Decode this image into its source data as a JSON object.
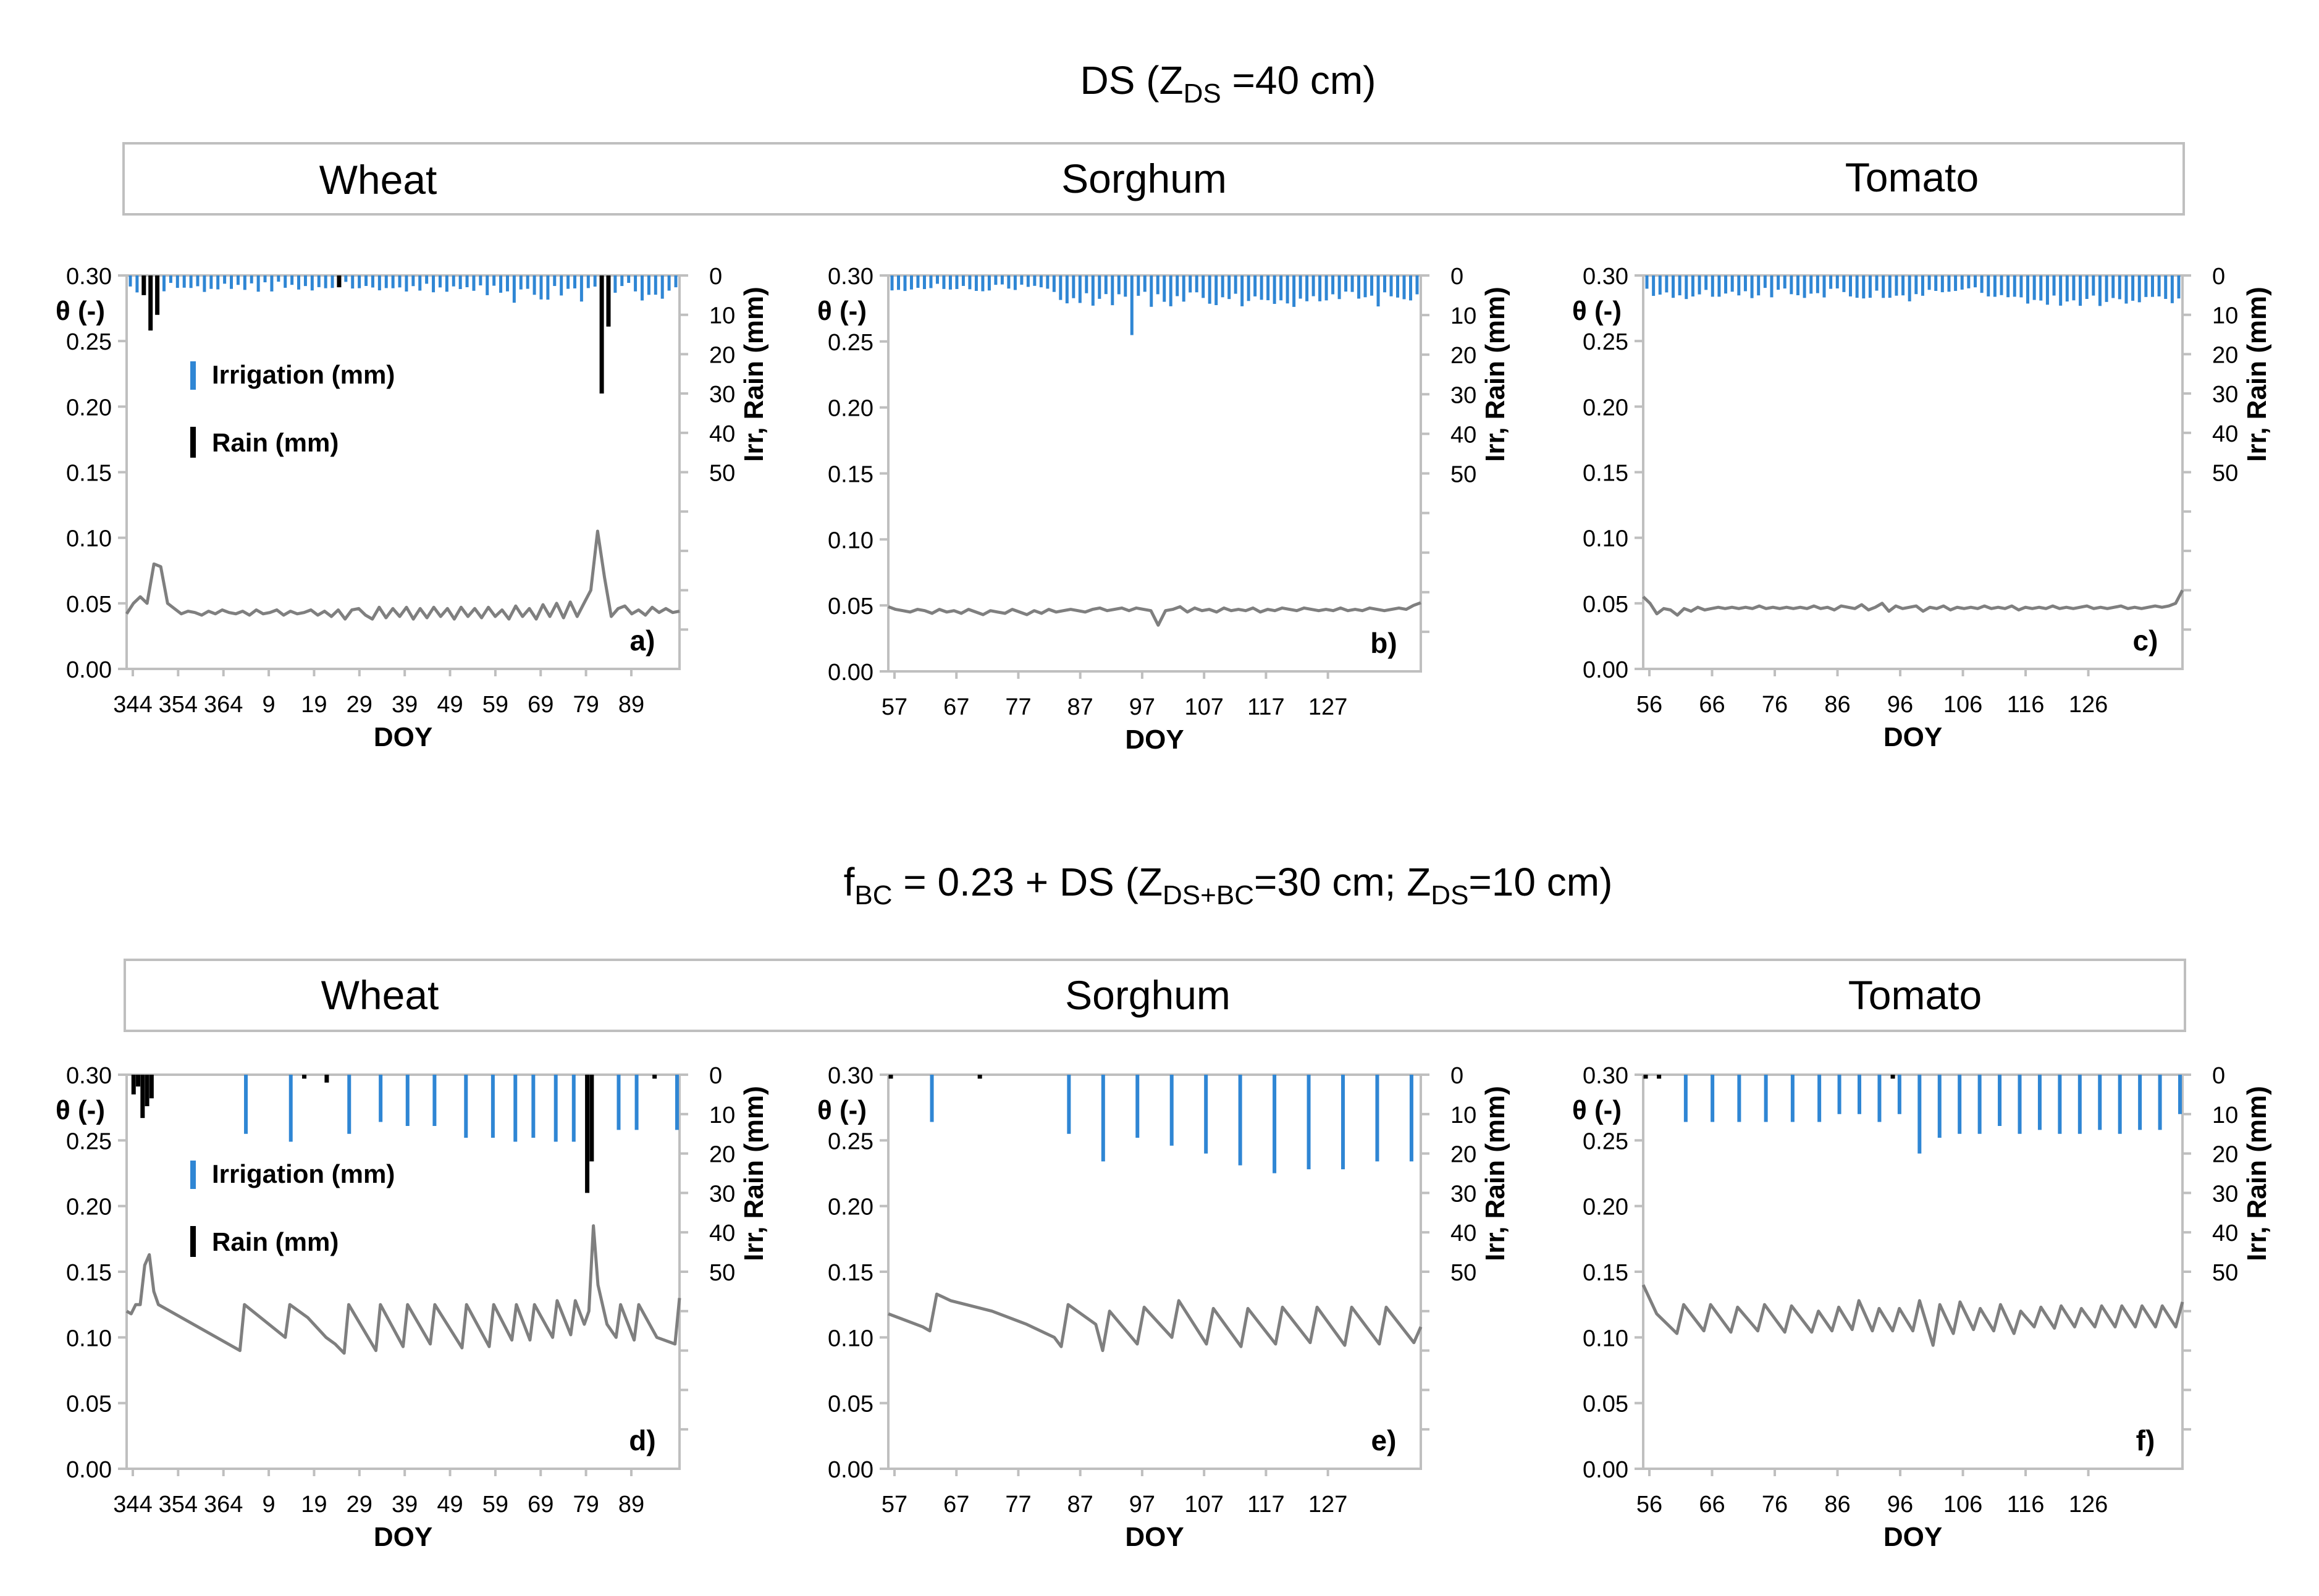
{
  "title_top": {
    "text": "DS  (Z",
    "sub": "DS",
    "tail": " =40 cm)"
  },
  "title_bottom": {
    "pre": "f",
    "sub1": "BC",
    "mid": " = 0.23 + DS  (Z",
    "sub2": "DS+BC",
    "mid2": "=30 cm;   Z",
    "sub3": "DS",
    "tail": "=10 cm)"
  },
  "crop_headers": [
    "Wheat",
    "Sorghum",
    "Tomato"
  ],
  "legend": {
    "irrigation": "Irrigation (mm)",
    "rain": "Rain (mm)"
  },
  "axis": {
    "theta_label": "θ (-)",
    "right_label": "Irr, Rain (mm)",
    "x_label": "DOY",
    "left_ticks": [
      "0.30",
      "0.25",
      "0.20",
      "0.15",
      "0.10",
      "0.05",
      "0.00"
    ],
    "right_ticks": [
      "0",
      "10",
      "20",
      "30",
      "40",
      "50"
    ]
  },
  "colors": {
    "irrigation": "#2f86d4",
    "rain": "#000000",
    "theta": "#7f7f7f",
    "border": "#bfbfbf"
  },
  "chart_data": [
    {
      "id": "a",
      "panel_label": "a)",
      "crop": "Wheat",
      "scenario": "DS",
      "type": "line+bar",
      "xticks": [
        "344",
        "354",
        "364",
        "9",
        "19",
        "29",
        "39",
        "49",
        "59",
        "69",
        "79",
        "89"
      ],
      "ylim": [
        0,
        0.3
      ],
      "y2lim": [
        0,
        50
      ],
      "theta": [
        0.042,
        0.05,
        0.055,
        0.05,
        0.08,
        0.078,
        0.05,
        0.046,
        0.042,
        0.044,
        0.043,
        0.041,
        0.044,
        0.042,
        0.045,
        0.043,
        0.042,
        0.044,
        0.041,
        0.045,
        0.042,
        0.043,
        0.045,
        0.041,
        0.044,
        0.042,
        0.043,
        0.045,
        0.041,
        0.044,
        0.04,
        0.045,
        0.038,
        0.045,
        0.046,
        0.041,
        0.038,
        0.047,
        0.039,
        0.046,
        0.04,
        0.047,
        0.038,
        0.046,
        0.039,
        0.047,
        0.04,
        0.046,
        0.038,
        0.047,
        0.04,
        0.046,
        0.039,
        0.047,
        0.04,
        0.045,
        0.038,
        0.048,
        0.04,
        0.046,
        0.038,
        0.049,
        0.04,
        0.05,
        0.039,
        0.051,
        0.04,
        0.05,
        0.06,
        0.105,
        0.07,
        0.04,
        0.046,
        0.048,
        0.042,
        0.045,
        0.041,
        0.047,
        0.043,
        0.046,
        0.043,
        0.044
      ],
      "irrigation_bars": "rain_ticks_light",
      "rain": [
        [
          2,
          5
        ],
        [
          3,
          14
        ],
        [
          4,
          10
        ],
        [
          31,
          3
        ],
        [
          70,
          30
        ],
        [
          71,
          13
        ]
      ]
    },
    {
      "id": "b",
      "panel_label": "b)",
      "crop": "Sorghum",
      "scenario": "DS",
      "type": "line+bar",
      "xticks": [
        "57",
        "67",
        "77",
        "87",
        "97",
        "107",
        "117",
        "127"
      ],
      "ylim": [
        0,
        0.3
      ],
      "y2lim": [
        0,
        50
      ],
      "theta": [
        0.049,
        0.047,
        0.046,
        0.045,
        0.047,
        0.046,
        0.044,
        0.047,
        0.045,
        0.046,
        0.044,
        0.047,
        0.045,
        0.043,
        0.046,
        0.045,
        0.044,
        0.047,
        0.045,
        0.043,
        0.046,
        0.044,
        0.047,
        0.045,
        0.046,
        0.047,
        0.046,
        0.045,
        0.047,
        0.048,
        0.046,
        0.047,
        0.048,
        0.046,
        0.048,
        0.047,
        0.046,
        0.035,
        0.046,
        0.047,
        0.049,
        0.045,
        0.048,
        0.046,
        0.047,
        0.045,
        0.048,
        0.046,
        0.047,
        0.046,
        0.048,
        0.045,
        0.047,
        0.046,
        0.048,
        0.047,
        0.046,
        0.048,
        0.047,
        0.046,
        0.047,
        0.046,
        0.048,
        0.046,
        0.047,
        0.046,
        0.048,
        0.047,
        0.046,
        0.047,
        0.048,
        0.047,
        0.05,
        0.052
      ]
    },
    {
      "id": "c",
      "panel_label": "c)",
      "crop": "Tomato",
      "scenario": "DS",
      "type": "line+bar",
      "xticks": [
        "56",
        "66",
        "76",
        "86",
        "96",
        "106",
        "116",
        "126"
      ],
      "ylim": [
        0,
        0.3
      ],
      "y2lim": [
        0,
        50
      ],
      "theta": [
        0.055,
        0.05,
        0.042,
        0.046,
        0.045,
        0.041,
        0.046,
        0.044,
        0.047,
        0.045,
        0.046,
        0.047,
        0.046,
        0.047,
        0.046,
        0.047,
        0.046,
        0.048,
        0.046,
        0.047,
        0.046,
        0.047,
        0.046,
        0.047,
        0.046,
        0.048,
        0.046,
        0.047,
        0.045,
        0.048,
        0.047,
        0.046,
        0.049,
        0.045,
        0.047,
        0.05,
        0.044,
        0.048,
        0.046,
        0.047,
        0.048,
        0.044,
        0.047,
        0.046,
        0.048,
        0.045,
        0.047,
        0.046,
        0.047,
        0.046,
        0.048,
        0.046,
        0.047,
        0.046,
        0.048,
        0.045,
        0.047,
        0.046,
        0.047,
        0.046,
        0.048,
        0.046,
        0.047,
        0.046,
        0.047,
        0.048,
        0.046,
        0.047,
        0.046,
        0.047,
        0.048,
        0.046,
        0.047,
        0.046,
        0.047,
        0.048,
        0.047,
        0.048,
        0.05,
        0.06
      ]
    },
    {
      "id": "d",
      "panel_label": "d)",
      "crop": "Wheat",
      "scenario": "fBC=0.23+DS",
      "type": "line+bar",
      "xticks": [
        "344",
        "354",
        "364",
        "9",
        "19",
        "29",
        "39",
        "49",
        "59",
        "69",
        "79",
        "89"
      ],
      "ylim": [
        0,
        0.3
      ],
      "y2lim": [
        0,
        50
      ],
      "theta": [
        [
          0,
          0.12
        ],
        [
          1,
          0.118
        ],
        [
          2,
          0.125
        ],
        [
          3,
          0.125
        ],
        [
          4,
          0.155
        ],
        [
          5,
          0.163
        ],
        [
          6,
          0.135
        ],
        [
          7,
          0.125
        ],
        [
          25,
          0.09
        ],
        [
          26,
          0.125
        ],
        [
          35,
          0.1
        ],
        [
          36,
          0.125
        ],
        [
          40,
          0.115
        ],
        [
          44,
          0.1
        ],
        [
          46,
          0.095
        ],
        [
          48,
          0.088
        ],
        [
          49,
          0.125
        ],
        [
          55,
          0.09
        ],
        [
          56,
          0.125
        ],
        [
          61,
          0.093
        ],
        [
          62,
          0.125
        ],
        [
          67,
          0.095
        ],
        [
          68,
          0.125
        ],
        [
          74,
          0.092
        ],
        [
          75,
          0.125
        ],
        [
          80,
          0.093
        ],
        [
          81,
          0.125
        ],
        [
          85,
          0.098
        ],
        [
          86,
          0.125
        ],
        [
          89,
          0.098
        ],
        [
          90,
          0.125
        ],
        [
          94,
          0.1
        ],
        [
          95,
          0.128
        ],
        [
          98,
          0.102
        ],
        [
          99,
          0.128
        ],
        [
          101,
          0.11
        ],
        [
          102,
          0.12
        ],
        [
          103,
          0.185
        ],
        [
          104,
          0.14
        ],
        [
          106,
          0.11
        ],
        [
          108,
          0.1
        ],
        [
          109,
          0.125
        ],
        [
          112,
          0.098
        ],
        [
          113,
          0.125
        ],
        [
          117,
          0.1
        ],
        [
          121,
          0.095
        ],
        [
          122,
          0.13
        ]
      ],
      "xmax": 122,
      "irrigation": [
        [
          26,
          15
        ],
        [
          36,
          17
        ],
        [
          49,
          15
        ],
        [
          56,
          12
        ],
        [
          62,
          13
        ],
        [
          68,
          13
        ],
        [
          75,
          16
        ],
        [
          81,
          16
        ],
        [
          86,
          17
        ],
        [
          90,
          16
        ],
        [
          95,
          17
        ],
        [
          99,
          17
        ],
        [
          103,
          16
        ],
        [
          109,
          14
        ],
        [
          113,
          14
        ],
        [
          122,
          14
        ]
      ],
      "rain": [
        [
          1,
          5
        ],
        [
          2,
          3
        ],
        [
          3,
          11
        ],
        [
          4,
          8
        ],
        [
          5,
          6
        ],
        [
          39,
          1
        ],
        [
          44,
          2
        ],
        [
          102,
          30
        ],
        [
          103,
          22
        ],
        [
          117,
          1
        ]
      ]
    },
    {
      "id": "e",
      "panel_label": "e)",
      "crop": "Sorghum",
      "scenario": "fBC=0.23+DS",
      "type": "line+bar",
      "xticks": [
        "57",
        "67",
        "77",
        "87",
        "97",
        "107",
        "117",
        "127"
      ],
      "ylim": [
        0,
        0.3
      ],
      "y2lim": [
        0,
        50
      ],
      "theta": [
        [
          0,
          0.118
        ],
        [
          5,
          0.108
        ],
        [
          6,
          0.105
        ],
        [
          7,
          0.133
        ],
        [
          9,
          0.128
        ],
        [
          15,
          0.12
        ],
        [
          20,
          0.11
        ],
        [
          24,
          0.1
        ],
        [
          25,
          0.093
        ],
        [
          26,
          0.125
        ],
        [
          30,
          0.11
        ],
        [
          31,
          0.09
        ],
        [
          32,
          0.12
        ],
        [
          36,
          0.095
        ],
        [
          37,
          0.123
        ],
        [
          41,
          0.1
        ],
        [
          42,
          0.128
        ],
        [
          46,
          0.095
        ],
        [
          47,
          0.122
        ],
        [
          51,
          0.093
        ],
        [
          52,
          0.122
        ],
        [
          56,
          0.095
        ],
        [
          57,
          0.123
        ],
        [
          61,
          0.096
        ],
        [
          62,
          0.123
        ],
        [
          66,
          0.094
        ],
        [
          67,
          0.123
        ],
        [
          71,
          0.095
        ],
        [
          72,
          0.123
        ],
        [
          76,
          0.096
        ],
        [
          77,
          0.108
        ]
      ],
      "xmax": 77,
      "irrigation": [
        [
          6,
          12
        ],
        [
          26,
          15
        ],
        [
          31,
          22
        ],
        [
          36,
          16
        ],
        [
          41,
          18
        ],
        [
          46,
          20
        ],
        [
          51,
          23
        ],
        [
          56,
          25
        ],
        [
          61,
          24
        ],
        [
          66,
          24
        ],
        [
          71,
          22
        ],
        [
          76,
          22
        ]
      ],
      "rain": [
        [
          0,
          1
        ],
        [
          13,
          1
        ]
      ]
    },
    {
      "id": "f",
      "panel_label": "f)",
      "crop": "Tomato",
      "scenario": "fBC=0.23+DS",
      "type": "line+bar",
      "xticks": [
        "56",
        "66",
        "76",
        "86",
        "96",
        "106",
        "116",
        "126"
      ],
      "ylim": [
        0,
        0.3
      ],
      "y2lim": [
        0,
        50
      ],
      "theta": [
        [
          0,
          0.14
        ],
        [
          2,
          0.118
        ],
        [
          5,
          0.103
        ],
        [
          6,
          0.125
        ],
        [
          9,
          0.105
        ],
        [
          10,
          0.125
        ],
        [
          13,
          0.104
        ],
        [
          14,
          0.123
        ],
        [
          17,
          0.105
        ],
        [
          18,
          0.125
        ],
        [
          21,
          0.104
        ],
        [
          22,
          0.124
        ],
        [
          25,
          0.104
        ],
        [
          26,
          0.12
        ],
        [
          28,
          0.105
        ],
        [
          29,
          0.123
        ],
        [
          31,
          0.106
        ],
        [
          32,
          0.128
        ],
        [
          34,
          0.105
        ],
        [
          35,
          0.122
        ],
        [
          37,
          0.105
        ],
        [
          38,
          0.122
        ],
        [
          40,
          0.105
        ],
        [
          41,
          0.128
        ],
        [
          43,
          0.094
        ],
        [
          44,
          0.125
        ],
        [
          46,
          0.103
        ],
        [
          47,
          0.127
        ],
        [
          49,
          0.106
        ],
        [
          50,
          0.122
        ],
        [
          52,
          0.105
        ],
        [
          53,
          0.125
        ],
        [
          55,
          0.103
        ],
        [
          56,
          0.12
        ],
        [
          58,
          0.108
        ],
        [
          59,
          0.123
        ],
        [
          61,
          0.107
        ],
        [
          62,
          0.124
        ],
        [
          64,
          0.108
        ],
        [
          65,
          0.122
        ],
        [
          67,
          0.108
        ],
        [
          68,
          0.124
        ],
        [
          70,
          0.108
        ],
        [
          71,
          0.124
        ],
        [
          73,
          0.108
        ],
        [
          74,
          0.124
        ],
        [
          76,
          0.108
        ],
        [
          77,
          0.124
        ],
        [
          79,
          0.108
        ],
        [
          80,
          0.127
        ]
      ],
      "xmax": 80,
      "irrigation": [
        [
          6,
          12
        ],
        [
          10,
          12
        ],
        [
          14,
          12
        ],
        [
          18,
          12
        ],
        [
          22,
          12
        ],
        [
          26,
          12
        ],
        [
          29,
          10
        ],
        [
          32,
          10
        ],
        [
          35,
          12
        ],
        [
          38,
          10
        ],
        [
          41,
          20
        ],
        [
          44,
          16
        ],
        [
          47,
          15
        ],
        [
          50,
          15
        ],
        [
          53,
          13
        ],
        [
          56,
          15
        ],
        [
          59,
          14
        ],
        [
          62,
          15
        ],
        [
          65,
          15
        ],
        [
          68,
          14
        ],
        [
          71,
          15
        ],
        [
          74,
          14
        ],
        [
          77,
          14
        ],
        [
          80,
          10
        ]
      ],
      "rain": [
        [
          0,
          1
        ],
        [
          2,
          1
        ],
        [
          37,
          1
        ]
      ]
    }
  ]
}
